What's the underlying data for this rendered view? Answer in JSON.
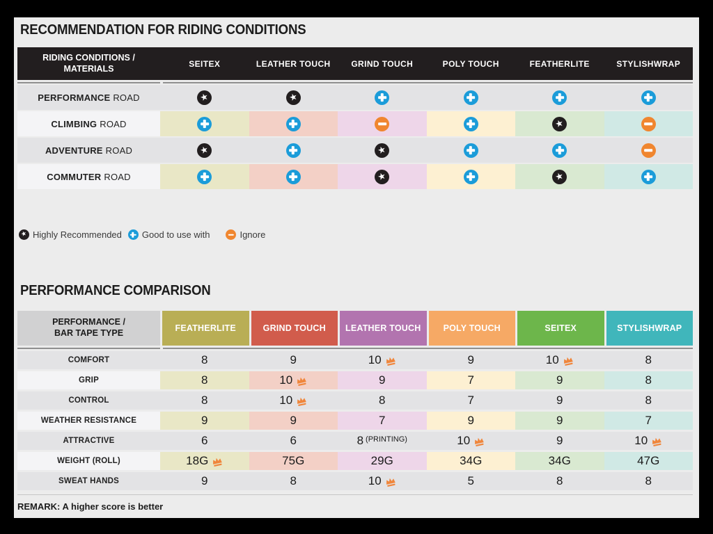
{
  "palette": {
    "page_bg": "#ececec",
    "frame": "#000000",
    "t1_header_bg": "#221e1f",
    "t2_label_header_bg": "#d1d1d2",
    "row_gray": "#e3e3e5",
    "row_label_light": "#f4f4f6",
    "separator": "#8f8f8f",
    "column_light": [
      "#e9e7c6",
      "#f3d0c6",
      "#eed6e9",
      "#fdf0d2",
      "#d9e9d1",
      "#d0e9e5"
    ],
    "icon_star_bg": "#221e1f",
    "icon_plus_bg": "#1b9cd9",
    "icon_minus_bg": "#f0862f",
    "crown": "#f0863c",
    "text_dark": "#1c1c1c"
  },
  "icons": {
    "star_glyph": "★",
    "star_meaning": "highly-recommended",
    "plus_meaning": "good-to-use-with",
    "minus_meaning": "ignore",
    "crown_meaning": "best-in-category"
  },
  "section1": {
    "title": "RECOMMENDATION FOR RIDING CONDITIONS",
    "table": {
      "header_label": "RIDING CONDITIONS /\nMATERIALS",
      "columns": [
        "SEITEX",
        "LEATHER TOUCH",
        "GRIND TOUCH",
        "POLY TOUCH",
        "FEATHERLITE",
        "STYLISHWRAP"
      ],
      "rows": [
        {
          "label_strong": "PERFORMANCE",
          "label_rest": "ROAD",
          "cells": [
            "star",
            "star",
            "plus",
            "plus",
            "plus",
            "plus"
          ]
        },
        {
          "label_strong": "CLIMBING",
          "label_rest": "ROAD",
          "cells": [
            "plus",
            "plus",
            "minus",
            "plus",
            "star",
            "minus"
          ]
        },
        {
          "label_strong": "ADVENTURE",
          "label_rest": "ROAD",
          "cells": [
            "star",
            "plus",
            "star",
            "plus",
            "plus",
            "minus"
          ]
        },
        {
          "label_strong": "COMMUTER",
          "label_rest": "ROAD",
          "cells": [
            "plus",
            "plus",
            "star",
            "plus",
            "star",
            "plus"
          ]
        }
      ]
    },
    "legend": [
      {
        "icon": "star",
        "label": "Highly Recommended"
      },
      {
        "icon": "plus",
        "label": "Good to use with"
      },
      {
        "icon": "minus",
        "label": "Ignore"
      }
    ]
  },
  "section2": {
    "title": "PERFORMANCE COMPARISON",
    "table": {
      "header_label": "PERFORMANCE /\nBAR TAPE TYPE",
      "columns": [
        {
          "label": "FEATHERLITE",
          "color": "#b9ae55"
        },
        {
          "label": "GRIND TOUCH",
          "color": "#d15c4c"
        },
        {
          "label": "LEATHER TOUCH",
          "color": "#b274af"
        },
        {
          "label": "POLY TOUCH",
          "color": "#f6a965"
        },
        {
          "label": "SEITEX",
          "color": "#6db64b"
        },
        {
          "label": "STYLISHWRAP",
          "color": "#40b6bb"
        }
      ],
      "rows": [
        {
          "label": "COMFORT",
          "cells": [
            {
              "value": "8"
            },
            {
              "value": "9"
            },
            {
              "value": "10",
              "crown": true
            },
            {
              "value": "9"
            },
            {
              "value": "10",
              "crown": true
            },
            {
              "value": "8"
            }
          ]
        },
        {
          "label": "GRIP",
          "cells": [
            {
              "value": "8"
            },
            {
              "value": "10",
              "crown": true
            },
            {
              "value": "9"
            },
            {
              "value": "7"
            },
            {
              "value": "9"
            },
            {
              "value": "8"
            }
          ]
        },
        {
          "label": "CONTROL",
          "cells": [
            {
              "value": "8"
            },
            {
              "value": "10",
              "crown": true
            },
            {
              "value": "8"
            },
            {
              "value": "7"
            },
            {
              "value": "9"
            },
            {
              "value": "8"
            }
          ]
        },
        {
          "label": "WEATHER RESISTANCE",
          "cells": [
            {
              "value": "9"
            },
            {
              "value": "9"
            },
            {
              "value": "7"
            },
            {
              "value": "9"
            },
            {
              "value": "9"
            },
            {
              "value": "7"
            }
          ]
        },
        {
          "label": "ATTRACTIVE",
          "cells": [
            {
              "value": "6"
            },
            {
              "value": "6"
            },
            {
              "value": "8",
              "note": "(PRINTING)"
            },
            {
              "value": "10",
              "crown": true
            },
            {
              "value": "9"
            },
            {
              "value": "10",
              "crown": true
            }
          ]
        },
        {
          "label": "WEIGHT (ROLL)",
          "cells": [
            {
              "value": "18G",
              "crown": true
            },
            {
              "value": "75G"
            },
            {
              "value": "29G"
            },
            {
              "value": "34G"
            },
            {
              "value": "34G"
            },
            {
              "value": "47G"
            }
          ]
        },
        {
          "label": "SWEAT HANDS",
          "cells": [
            {
              "value": "9"
            },
            {
              "value": "8"
            },
            {
              "value": "10",
              "crown": true
            },
            {
              "value": "5"
            },
            {
              "value": "8"
            },
            {
              "value": "8"
            }
          ]
        }
      ]
    },
    "remark": "REMARK: A higher score is better"
  }
}
